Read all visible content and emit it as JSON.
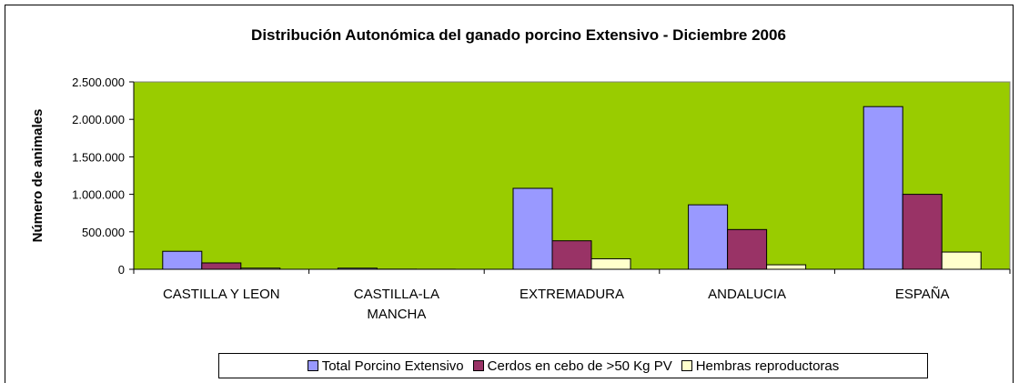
{
  "chart_data": {
    "type": "bar",
    "title": "Distribución Autonómica del ganado porcino Extensivo - Diciembre 2006",
    "y_label": "Número de animales",
    "categories": [
      "CASTILLA Y LEON",
      "CASTILLA-LA MANCHA",
      "EXTREMADURA",
      "ANDALUCIA",
      "ESPAÑA"
    ],
    "series": [
      {
        "name": "Total Porcino Extensivo",
        "color": "#9999ff",
        "values": [
          240000,
          15000,
          1080000,
          860000,
          2170000
        ]
      },
      {
        "name": "Cerdos en cebo de >50 Kg PV",
        "color": "#993366",
        "values": [
          85000,
          2000,
          380000,
          530000,
          1000000
        ]
      },
      {
        "name": "Hembras reproductoras",
        "color": "#ffffcc",
        "values": [
          15000,
          1000,
          140000,
          60000,
          230000
        ]
      }
    ],
    "ylim": [
      0,
      2500000
    ],
    "yticks": [
      0,
      {
        "value": 500000,
        "label": "500.000"
      },
      {
        "value": 1000000,
        "label": "1.000.000"
      },
      {
        "value": 1500000,
        "label": "1.500.000"
      },
      {
        "value": 2000000,
        "label": "2.000.000"
      },
      {
        "value": 2500000,
        "label": "2.500.000"
      }
    ],
    "plot_color": "#99cc00",
    "legend": "bottom"
  }
}
